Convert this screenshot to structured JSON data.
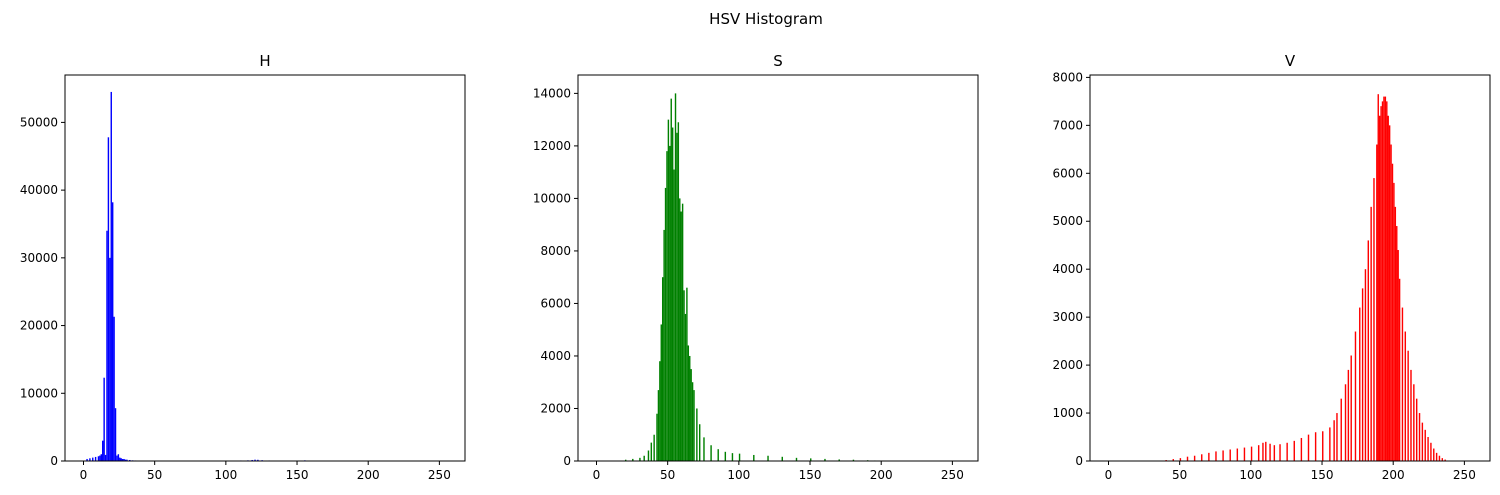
{
  "figure": {
    "suptitle": "HSV Histogram"
  },
  "chart_data": [
    {
      "type": "bar",
      "title": "H",
      "color": "#0000ff",
      "xlim": [
        -13,
        268
      ],
      "ylim": [
        0,
        57000
      ],
      "xticks": [
        0,
        50,
        100,
        150,
        200,
        250
      ],
      "yticks": [
        0,
        10000,
        20000,
        30000,
        40000,
        50000
      ],
      "bin_width": 1,
      "x": [
        2,
        4,
        6,
        8,
        10,
        11,
        12,
        13,
        14,
        15,
        16,
        17,
        18,
        19,
        20,
        21,
        22,
        23,
        24,
        25,
        26,
        27,
        28,
        29,
        30,
        32,
        34,
        36,
        40,
        45,
        110,
        115,
        118,
        120,
        122,
        125,
        130,
        155
      ],
      "values": [
        300,
        400,
        500,
        600,
        700,
        800,
        1000,
        3000,
        12300,
        900,
        34000,
        47800,
        30000,
        54500,
        38200,
        21300,
        7800,
        800,
        1000,
        500,
        400,
        300,
        300,
        200,
        200,
        150,
        100,
        80,
        60,
        40,
        80,
        100,
        150,
        200,
        180,
        120,
        80,
        100
      ]
    },
    {
      "type": "bar",
      "title": "S",
      "color": "#008000",
      "xlim": [
        -13,
        268
      ],
      "ylim": [
        0,
        14700
      ],
      "xticks": [
        0,
        50,
        100,
        150,
        200,
        250
      ],
      "yticks": [
        0,
        2000,
        4000,
        6000,
        8000,
        10000,
        12000,
        14000
      ],
      "bin_width": 1,
      "x": [
        20,
        25,
        30,
        33,
        36,
        38,
        40,
        42,
        43,
        44,
        45,
        46,
        47,
        48,
        49,
        50,
        51,
        52,
        53,
        54,
        55,
        56,
        57,
        58,
        59,
        60,
        61,
        62,
        63,
        64,
        65,
        66,
        67,
        68,
        70,
        72,
        75,
        80,
        85,
        90,
        95,
        100,
        110,
        120,
        130,
        140,
        150,
        160,
        170,
        180,
        190,
        195
      ],
      "values": [
        50,
        80,
        120,
        200,
        400,
        700,
        1000,
        1800,
        2700,
        3800,
        5200,
        7000,
        8800,
        10400,
        11800,
        13000,
        12000,
        13800,
        12700,
        11100,
        14000,
        12500,
        12900,
        10000,
        9500,
        9800,
        6500,
        5600,
        6600,
        4400,
        4000,
        3500,
        3000,
        2700,
        2000,
        1400,
        900,
        600,
        450,
        350,
        300,
        280,
        230,
        200,
        160,
        120,
        100,
        80,
        60,
        50,
        30,
        20
      ]
    },
    {
      "type": "bar",
      "title": "V",
      "color": "#ff0000",
      "xlim": [
        -13,
        268
      ],
      "ylim": [
        0,
        8050
      ],
      "xticks": [
        0,
        50,
        100,
        150,
        200,
        250
      ],
      "yticks": [
        0,
        1000,
        2000,
        3000,
        4000,
        5000,
        6000,
        7000,
        8000
      ],
      "bin_width": 1,
      "x": [
        40,
        45,
        50,
        55,
        60,
        65,
        70,
        75,
        80,
        85,
        90,
        95,
        100,
        105,
        108,
        110,
        113,
        116,
        120,
        125,
        130,
        135,
        140,
        145,
        150,
        155,
        158,
        160,
        163,
        166,
        168,
        170,
        173,
        176,
        178,
        180,
        182,
        184,
        186,
        188,
        189,
        190,
        191,
        192,
        193,
        194,
        195,
        196,
        197,
        198,
        199,
        200,
        201,
        202,
        203,
        204,
        206,
        208,
        210,
        212,
        214,
        216,
        218,
        220,
        222,
        224,
        226,
        228,
        230,
        232,
        234,
        236,
        238,
        240
      ],
      "values": [
        20,
        40,
        60,
        90,
        110,
        140,
        170,
        200,
        220,
        240,
        260,
        280,
        300,
        330,
        380,
        400,
        360,
        330,
        350,
        380,
        420,
        480,
        550,
        600,
        620,
        700,
        850,
        1000,
        1300,
        1600,
        1900,
        2200,
        2700,
        3200,
        3600,
        4000,
        4600,
        5300,
        5900,
        6600,
        7650,
        7200,
        7400,
        7500,
        7600,
        7600,
        7500,
        7200,
        7000,
        6600,
        6200,
        5800,
        5300,
        4900,
        4400,
        3800,
        3200,
        2700,
        2300,
        1900,
        1600,
        1300,
        1000,
        800,
        650,
        500,
        380,
        260,
        170,
        110,
        60,
        30,
        10,
        5
      ]
    }
  ]
}
